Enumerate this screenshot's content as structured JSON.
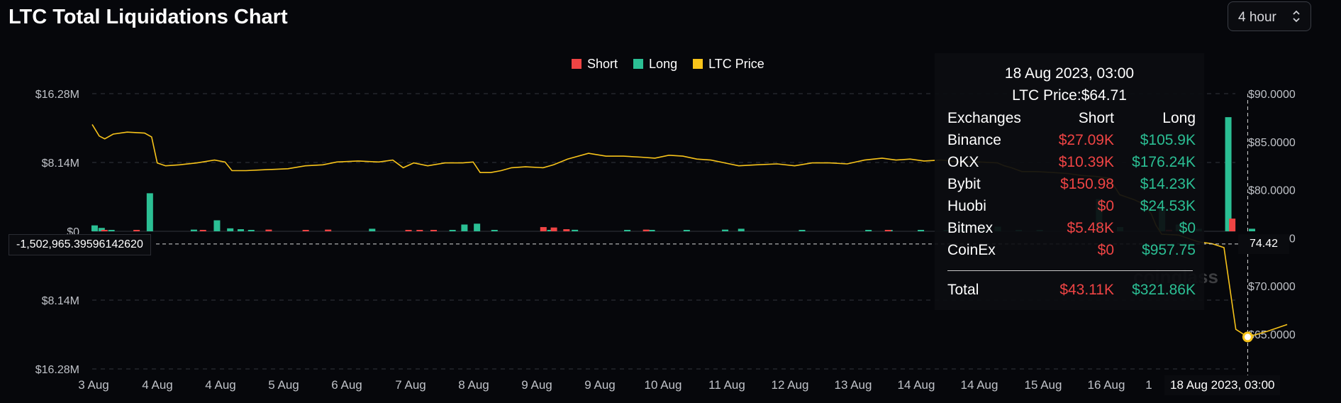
{
  "header": {
    "title": "LTC Total Liquidations Chart",
    "interval": "4 hour"
  },
  "legend": [
    {
      "label": "Short",
      "color": "#ef4444"
    },
    {
      "label": "Long",
      "color": "#2bbf94"
    },
    {
      "label": "LTC Price",
      "color": "#f7c31a"
    }
  ],
  "crosshair": {
    "value_label": "-1,502,965.39596142620",
    "price_label": "74.42",
    "date_label": "18 Aug 2023, 03:00"
  },
  "watermark": "coinglass",
  "tooltip": {
    "date": "18 Aug 2023, 03:00",
    "price": "LTC Price:$64.71",
    "headers": [
      "Exchanges",
      "Short",
      "Long"
    ],
    "rows": [
      {
        "name": "Binance",
        "short": "$27.09K",
        "long": "$105.9K"
      },
      {
        "name": "OKX",
        "short": "$10.39K",
        "long": "$176.24K"
      },
      {
        "name": "Bybit",
        "short": "$150.98",
        "long": "$14.23K"
      },
      {
        "name": "Huobi",
        "short": "$0",
        "long": "$24.53K"
      },
      {
        "name": "Bitmex",
        "short": "$5.48K",
        "long": "$0"
      },
      {
        "name": "CoinEx",
        "short": "$0",
        "long": "$957.75"
      }
    ],
    "total": {
      "name": "Total",
      "short": "$43.11K",
      "long": "$321.86K"
    }
  },
  "chart_data": {
    "type": "bar",
    "title": "LTC Total Liquidations Chart",
    "left_axis_ticks": [
      "$16.28M",
      "$8.14M",
      "$0",
      "$8.14M",
      "$16.28M"
    ],
    "right_axis_ticks": [
      "$90.0000",
      "$85.0000",
      "$80.0000",
      "$75.0000",
      "$70.0000",
      "$65.0000"
    ],
    "y_left_range": [
      -16280000,
      16280000
    ],
    "y_right_range": [
      63.0,
      90.0
    ],
    "x_ticks": [
      "3 Aug",
      "4 Aug",
      "4 Aug",
      "5 Aug",
      "6 Aug",
      "7 Aug",
      "8 Aug",
      "9 Aug",
      "9 Aug",
      "10 Aug",
      "11 Aug",
      "12 Aug",
      "13 Aug",
      "14 Aug",
      "14 Aug",
      "15 Aug",
      "16 Aug",
      "1"
    ],
    "x_range_days": [
      0,
      15.4
    ],
    "series": [
      {
        "name": "Long",
        "color": "#2bbf94",
        "points": [
          [
            0.03,
            700000
          ],
          [
            0.13,
            400000
          ],
          [
            0.27,
            100000
          ],
          [
            0.82,
            4500000
          ],
          [
            1.45,
            200000
          ],
          [
            1.78,
            1300000
          ],
          [
            1.97,
            350000
          ],
          [
            2.12,
            250000
          ],
          [
            2.27,
            120000
          ],
          [
            4.0,
            300000
          ],
          [
            5.15,
            100000
          ],
          [
            5.32,
            800000
          ],
          [
            5.5,
            900000
          ],
          [
            5.75,
            120000
          ],
          [
            6.55,
            150000
          ],
          [
            6.9,
            180000
          ],
          [
            7.65,
            150000
          ],
          [
            8.0,
            120000
          ],
          [
            8.5,
            100000
          ],
          [
            9.05,
            200000
          ],
          [
            9.28,
            300000
          ],
          [
            10.15,
            100000
          ],
          [
            11.1,
            100000
          ],
          [
            11.4,
            100000
          ],
          [
            11.85,
            150000
          ],
          [
            12.22,
            100000
          ],
          [
            12.45,
            200000
          ],
          [
            12.75,
            100000
          ],
          [
            12.95,
            550000
          ],
          [
            13.25,
            120000
          ],
          [
            13.55,
            100000
          ],
          [
            14.4,
            3800000
          ],
          [
            14.7,
            500000
          ],
          [
            15.3,
            3000000
          ],
          [
            15.45,
            800000
          ],
          [
            15.55,
            300000
          ],
          [
            15.7,
            13500000
          ],
          [
            15.82,
            300000
          ]
        ]
      },
      {
        "name": "Short",
        "color": "#ef4444",
        "points": [
          [
            0.17,
            80000
          ],
          [
            0.63,
            100000
          ],
          [
            1.58,
            150000
          ],
          [
            2.52,
            200000
          ],
          [
            3.05,
            150000
          ],
          [
            3.37,
            200000
          ],
          [
            4.52,
            100000
          ],
          [
            4.68,
            120000
          ],
          [
            4.88,
            100000
          ],
          [
            6.45,
            500000
          ],
          [
            6.6,
            450000
          ],
          [
            6.78,
            250000
          ],
          [
            7.92,
            200000
          ],
          [
            11.38,
            100000
          ],
          [
            15.4,
            180000
          ],
          [
            15.72,
            1500000
          ]
        ]
      }
    ],
    "price_series": {
      "name": "LTC Price",
      "color": "#f7c31a",
      "points": [
        [
          0.0,
          86.8
        ],
        [
          0.1,
          85.6
        ],
        [
          0.18,
          85.3
        ],
        [
          0.3,
          85.8
        ],
        [
          0.5,
          86.0
        ],
        [
          0.75,
          85.9
        ],
        [
          0.85,
          85.5
        ],
        [
          0.93,
          82.8
        ],
        [
          1.05,
          82.5
        ],
        [
          1.25,
          82.6
        ],
        [
          1.5,
          82.8
        ],
        [
          1.75,
          83.1
        ],
        [
          1.9,
          82.9
        ],
        [
          2.0,
          82.0
        ],
        [
          2.2,
          82.0
        ],
        [
          2.5,
          82.1
        ],
        [
          2.8,
          82.2
        ],
        [
          3.05,
          82.5
        ],
        [
          3.3,
          82.6
        ],
        [
          3.5,
          82.9
        ],
        [
          3.8,
          83.0
        ],
        [
          4.1,
          82.9
        ],
        [
          4.3,
          83.1
        ],
        [
          4.45,
          82.3
        ],
        [
          4.6,
          82.8
        ],
        [
          4.8,
          82.5
        ],
        [
          5.05,
          82.8
        ],
        [
          5.3,
          82.8
        ],
        [
          5.45,
          82.9
        ],
        [
          5.55,
          81.8
        ],
        [
          5.7,
          81.8
        ],
        [
          5.85,
          82.0
        ],
        [
          6.0,
          82.3
        ],
        [
          6.2,
          82.4
        ],
        [
          6.45,
          82.3
        ],
        [
          6.6,
          82.6
        ],
        [
          6.8,
          83.2
        ],
        [
          7.1,
          83.8
        ],
        [
          7.35,
          83.5
        ],
        [
          7.6,
          83.5
        ],
        [
          7.85,
          83.4
        ],
        [
          8.05,
          83.3
        ],
        [
          8.25,
          83.6
        ],
        [
          8.45,
          83.5
        ],
        [
          8.65,
          83.2
        ],
        [
          8.85,
          83.1
        ],
        [
          9.05,
          82.8
        ],
        [
          9.25,
          82.5
        ],
        [
          9.5,
          82.6
        ],
        [
          9.8,
          82.7
        ],
        [
          10.05,
          82.5
        ],
        [
          10.3,
          82.8
        ],
        [
          10.55,
          82.8
        ],
        [
          10.8,
          82.7
        ],
        [
          11.05,
          83.1
        ],
        [
          11.3,
          83.3
        ],
        [
          11.5,
          83.1
        ],
        [
          11.7,
          83.2
        ],
        [
          11.9,
          83.0
        ],
        [
          12.15,
          83.1
        ],
        [
          12.4,
          82.9
        ],
        [
          12.7,
          82.9
        ],
        [
          12.95,
          82.8
        ],
        [
          13.05,
          82.5
        ],
        [
          13.15,
          82.3
        ],
        [
          13.3,
          81.9
        ],
        [
          13.5,
          81.9
        ],
        [
          13.75,
          81.8
        ],
        [
          13.95,
          81.7
        ],
        [
          14.15,
          81.5
        ],
        [
          14.35,
          81.4
        ],
        [
          14.55,
          81.2
        ],
        [
          14.7,
          79.5
        ],
        [
          14.9,
          79.0
        ],
        [
          15.05,
          78.5
        ],
        [
          15.15,
          77.5
        ],
        [
          15.22,
          76.3
        ],
        [
          15.3,
          75.4
        ],
        [
          15.45,
          75.3
        ],
        [
          15.55,
          74.6
        ],
        [
          15.62,
          74.4
        ],
        [
          15.68,
          74.0
        ],
        [
          15.74,
          65.5
        ],
        [
          15.8,
          64.71
        ],
        [
          15.9,
          65.3
        ],
        [
          16.0,
          66.0
        ]
      ]
    },
    "crosshair_x_day": 15.8,
    "crosshair_y_value": -1502965.3959614262,
    "highlight_point": [
      15.8,
      64.71
    ]
  }
}
